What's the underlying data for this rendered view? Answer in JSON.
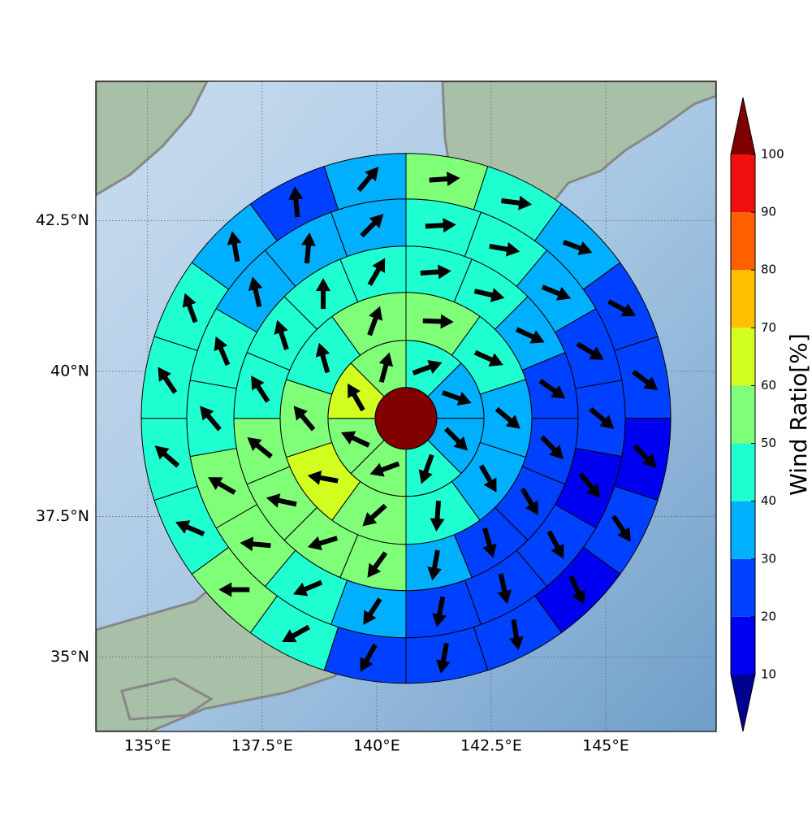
{
  "chart_data": {
    "type": "polar",
    "xlim": [
      133.87,
      147.41
    ],
    "ylim": [
      33.64,
      44.73
    ],
    "xticks": [
      {
        "value": 135,
        "label": "135°E"
      },
      {
        "value": 137.5,
        "label": "137.5°E"
      },
      {
        "value": 140,
        "label": "140°E"
      },
      {
        "value": 142.5,
        "label": "142.5°E"
      },
      {
        "value": 145,
        "label": "145°E"
      }
    ],
    "yticks": [
      {
        "value": 35,
        "label": "35°N"
      },
      {
        "value": 37.5,
        "label": "37.5°N"
      },
      {
        "value": 40,
        "label": "40°N"
      },
      {
        "value": 42.5,
        "label": "42.5°N"
      }
    ],
    "grid": true,
    "center": [
      140.64,
      39.2
    ],
    "center_value": 105,
    "rings": [
      {
        "values": [
          45,
          35,
          35,
          45,
          55,
          55,
          65,
          55
        ],
        "directions": [
          70,
          110,
          135,
          200,
          250,
          295,
          330,
          15
        ]
      },
      {
        "values": [
          55,
          45,
          35,
          35,
          45,
          55,
          65,
          55,
          45,
          55
        ],
        "directions": [
          92,
          114,
          130,
          150,
          184,
          228,
          280,
          320,
          344,
          20
        ]
      },
      {
        "values": [
          45,
          45,
          35,
          25,
          25,
          25,
          25,
          35,
          55,
          55,
          55,
          55,
          45,
          45,
          45,
          45
        ],
        "directions": [
          86,
          103,
          115,
          125,
          136,
          149,
          164,
          190,
          216,
          253,
          282,
          309,
          327,
          342,
          0,
          30
        ]
      },
      {
        "values": [
          45,
          45,
          35,
          25,
          25,
          15,
          25,
          25,
          25,
          35,
          45,
          55,
          55,
          45,
          45,
          35,
          35,
          35
        ],
        "directions": [
          87,
          100,
          112,
          121,
          130,
          141,
          152,
          168,
          191,
          213,
          247,
          275,
          300,
          320,
          337,
          347,
          5,
          45
        ]
      },
      {
        "values": [
          55,
          45,
          35,
          25,
          25,
          15,
          25,
          15,
          25,
          25,
          25,
          45,
          55,
          45,
          45,
          45,
          45,
          35,
          25,
          35
        ],
        "directions": [
          86,
          97,
          110,
          118,
          127,
          135,
          146,
          155,
          171,
          191,
          209,
          241,
          270,
          293,
          311,
          326,
          340,
          350,
          355,
          40
        ]
      }
    ],
    "colorbar": {
      "label": "Wind Ratio[%]",
      "ticks": [
        10,
        20,
        30,
        40,
        50,
        60,
        70,
        80,
        90,
        100
      ],
      "colors": [
        "#0000f0",
        "#0040ff",
        "#00b0ff",
        "#20ffd2",
        "#80ff78",
        "#d2ff20",
        "#ffc000",
        "#ff6000",
        "#f01010"
      ],
      "under_color": "#000090",
      "over_color": "#800000"
    }
  }
}
